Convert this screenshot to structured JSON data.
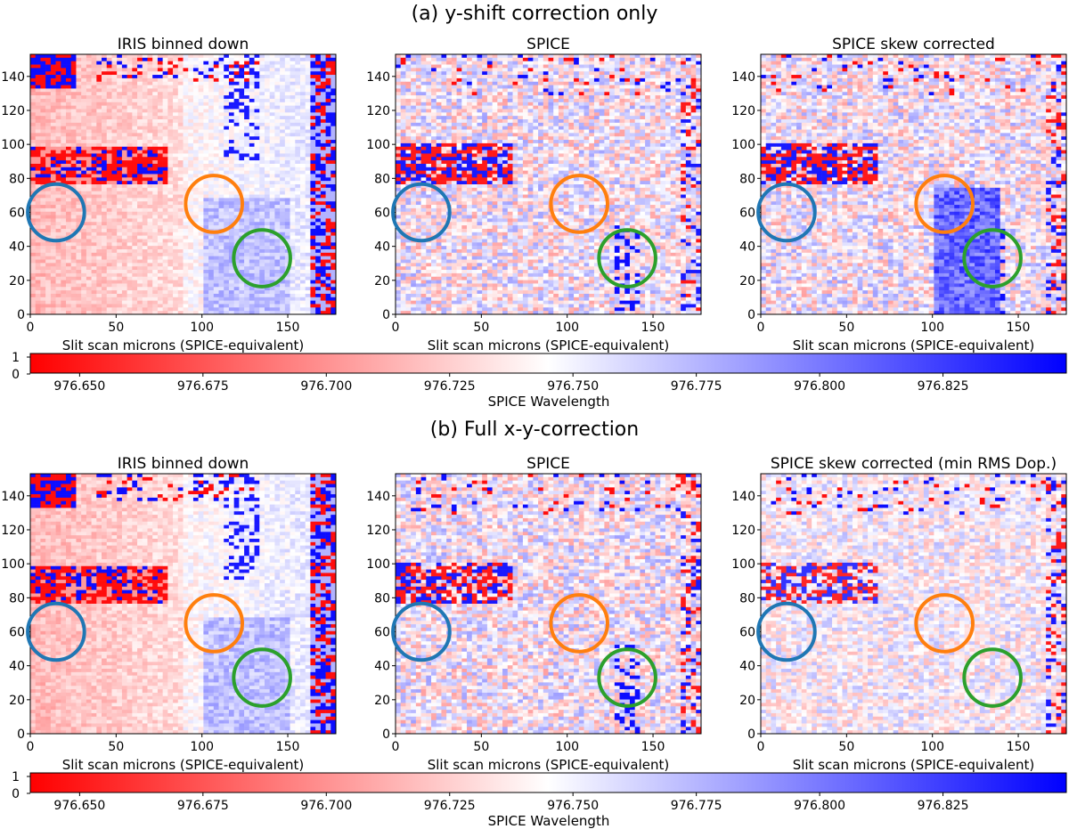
{
  "chart_data": {
    "type": "heatmap",
    "colorbar": {
      "label": "SPICE Wavelength",
      "range": [
        976.64,
        976.85
      ],
      "ticks": [
        "976.650",
        "976.675",
        "976.700",
        "976.725",
        "976.750",
        "976.775",
        "976.800",
        "976.825"
      ],
      "tick_values": [
        976.65,
        976.675,
        976.7,
        976.725,
        976.75,
        976.775,
        976.8,
        976.825
      ],
      "left_ticks": [
        "1",
        "0"
      ],
      "colors": {
        "low": "#ff0000",
        "mid": "#ffffff",
        "high": "#0000ff"
      }
    },
    "sections": [
      {
        "title": "(a) y-shift correction only",
        "panels": [
          {
            "title": "IRIS binned down",
            "xlabel": "Slit scan microns (SPICE-equivalent)",
            "xlim": [
              0,
              178
            ],
            "ylim": [
              0,
              153
            ],
            "xticks": [
              0,
              50,
              100,
              150
            ],
            "yticks": [
              0,
              20,
              40,
              60,
              80,
              100,
              120,
              140
            ],
            "grid": "iris",
            "circles": [
              {
                "color": "#1f77b4",
                "x": 15,
                "y": 60,
                "r": 15
              },
              {
                "color": "#ff7f0e",
                "x": 107,
                "y": 65,
                "r": 15
              },
              {
                "color": "#2ca02c",
                "x": 135,
                "y": 33,
                "r": 15
              }
            ]
          },
          {
            "title": "SPICE",
            "xlabel": "Slit scan microns (SPICE-equivalent)",
            "xlim": [
              0,
              178
            ],
            "ylim": [
              0,
              153
            ],
            "xticks": [
              0,
              50,
              100,
              150
            ],
            "yticks": [
              0,
              20,
              40,
              60,
              80,
              100,
              120,
              140
            ],
            "grid": "spice",
            "circles": [
              {
                "color": "#1f77b4",
                "x": 15,
                "y": 60,
                "r": 15
              },
              {
                "color": "#ff7f0e",
                "x": 107,
                "y": 65,
                "r": 15
              },
              {
                "color": "#2ca02c",
                "x": 135,
                "y": 33,
                "r": 15
              }
            ]
          },
          {
            "title": "SPICE skew corrected",
            "xlabel": "Slit scan microns (SPICE-equivalent)",
            "xlim": [
              0,
              178
            ],
            "ylim": [
              0,
              153
            ],
            "xticks": [
              0,
              50,
              100,
              150
            ],
            "yticks": [
              0,
              20,
              40,
              60,
              80,
              100,
              120,
              140
            ],
            "grid": "skew",
            "circles": [
              {
                "color": "#1f77b4",
                "x": 15,
                "y": 60,
                "r": 15
              },
              {
                "color": "#ff7f0e",
                "x": 107,
                "y": 65,
                "r": 15
              },
              {
                "color": "#2ca02c",
                "x": 135,
                "y": 33,
                "r": 15
              }
            ]
          }
        ]
      },
      {
        "title": "(b) Full x-y-correction",
        "panels": [
          {
            "title": "IRIS binned down",
            "xlabel": "Slit scan microns (SPICE-equivalent)",
            "xlim": [
              0,
              178
            ],
            "ylim": [
              0,
              153
            ],
            "xticks": [
              0,
              50,
              100,
              150
            ],
            "yticks": [
              0,
              20,
              40,
              60,
              80,
              100,
              120,
              140
            ],
            "grid": "iris",
            "circles": [
              {
                "color": "#1f77b4",
                "x": 15,
                "y": 60,
                "r": 15
              },
              {
                "color": "#ff7f0e",
                "x": 107,
                "y": 65,
                "r": 15
              },
              {
                "color": "#2ca02c",
                "x": 135,
                "y": 33,
                "r": 15
              }
            ]
          },
          {
            "title": "SPICE",
            "xlabel": "Slit scan microns (SPICE-equivalent)",
            "xlim": [
              0,
              178
            ],
            "ylim": [
              0,
              153
            ],
            "xticks": [
              0,
              50,
              100,
              150
            ],
            "yticks": [
              0,
              20,
              40,
              60,
              80,
              100,
              120,
              140
            ],
            "grid": "spice",
            "circles": [
              {
                "color": "#1f77b4",
                "x": 15,
                "y": 60,
                "r": 15
              },
              {
                "color": "#ff7f0e",
                "x": 107,
                "y": 65,
                "r": 15
              },
              {
                "color": "#2ca02c",
                "x": 135,
                "y": 33,
                "r": 15
              }
            ]
          },
          {
            "title": "SPICE skew corrected (min RMS Dop.)",
            "xlabel": "Slit scan microns (SPICE-equivalent)",
            "xlim": [
              0,
              178
            ],
            "ylim": [
              0,
              153
            ],
            "xticks": [
              0,
              50,
              100,
              150
            ],
            "yticks": [
              0,
              20,
              40,
              60,
              80,
              100,
              120,
              140
            ],
            "grid": "skewb",
            "circles": [
              {
                "color": "#1f77b4",
                "x": 15,
                "y": 60,
                "r": 15
              },
              {
                "color": "#ff7f0e",
                "x": 107,
                "y": 65,
                "r": 15
              },
              {
                "color": "#2ca02c",
                "x": 135,
                "y": 33,
                "r": 15
              }
            ]
          }
        ]
      }
    ]
  }
}
